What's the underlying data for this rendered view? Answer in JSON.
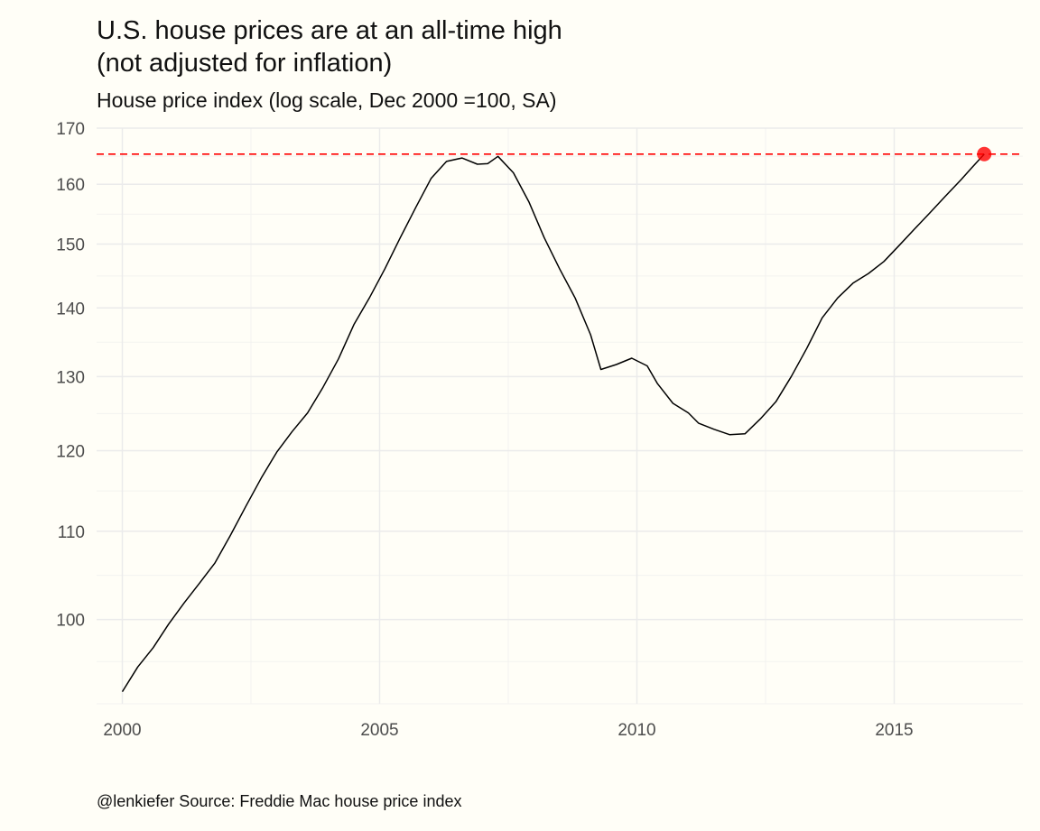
{
  "title_line1": "U.S. house prices are at an all-time high",
  "title_line2": "(not adjusted for inflation)",
  "subtitle": "House price index (log scale, Dec 2000 =100, SA)",
  "caption": "@lenkiefer Source: Freddie Mac house price index",
  "colors": {
    "line": "#000000",
    "highlight": "#ff0000",
    "grid": "#ebebeb",
    "background": "#fffef7"
  },
  "chart_data": {
    "type": "line",
    "y_scale": "log",
    "title": "U.S. house prices are at an all-time high (not adjusted for inflation)",
    "subtitle": "House price index (log scale, Dec 2000 =100, SA)",
    "xlim": [
      1999.5,
      2017.5
    ],
    "ylim": [
      91.3,
      170
    ],
    "x_ticks": [
      2000,
      2005,
      2010,
      2015
    ],
    "y_ticks": [
      100,
      110,
      120,
      130,
      140,
      150,
      160,
      170
    ],
    "grid": true,
    "legend": "none",
    "reference_line": {
      "y": 165.3,
      "style": "dashed",
      "color": "#ff0000"
    },
    "highlight_point": {
      "x": 2016.75,
      "y": 165.3,
      "color": "#ff0000"
    },
    "series": [
      {
        "x": [
          2000.0,
          2000.3,
          2000.6,
          2000.9,
          2001.2,
          2001.5,
          2001.8,
          2002.1,
          2002.4,
          2002.7,
          2003.0,
          2003.3,
          2003.6,
          2003.9,
          2004.2,
          2004.5,
          2004.8,
          2005.1,
          2005.4,
          2005.7,
          2006.0,
          2006.3,
          2006.6,
          2006.9,
          2007.1,
          2007.3,
          2007.6,
          2007.9,
          2008.2,
          2008.5,
          2008.8,
          2009.1,
          2009.3,
          2009.6,
          2009.9,
          2010.2,
          2010.4,
          2010.7,
          2011.0,
          2011.2,
          2011.5,
          2011.8,
          2012.1,
          2012.4,
          2012.7,
          2013.0,
          2013.3,
          2013.6,
          2013.9,
          2014.2,
          2014.5,
          2014.8,
          2015.1,
          2015.4,
          2015.7,
          2016.0,
          2016.3,
          2016.5,
          2016.75
        ],
        "y": [
          92.5,
          95.0,
          97.0,
          99.5,
          101.8,
          104.0,
          106.3,
          109.5,
          113.0,
          116.5,
          119.8,
          122.5,
          125.0,
          128.5,
          132.5,
          137.5,
          141.5,
          146.0,
          151.0,
          156.0,
          161.0,
          164.0,
          164.6,
          163.5,
          163.6,
          164.9,
          162.0,
          157.0,
          151.0,
          146.0,
          141.5,
          136.0,
          131.0,
          131.7,
          132.6,
          131.5,
          129.0,
          126.3,
          125.0,
          123.6,
          122.8,
          122.1,
          122.2,
          124.2,
          126.5,
          130.0,
          134.0,
          138.5,
          141.5,
          143.8,
          145.3,
          147.2,
          149.8,
          152.5,
          155.2,
          158.0,
          160.8,
          162.8,
          165.3
        ]
      }
    ]
  }
}
